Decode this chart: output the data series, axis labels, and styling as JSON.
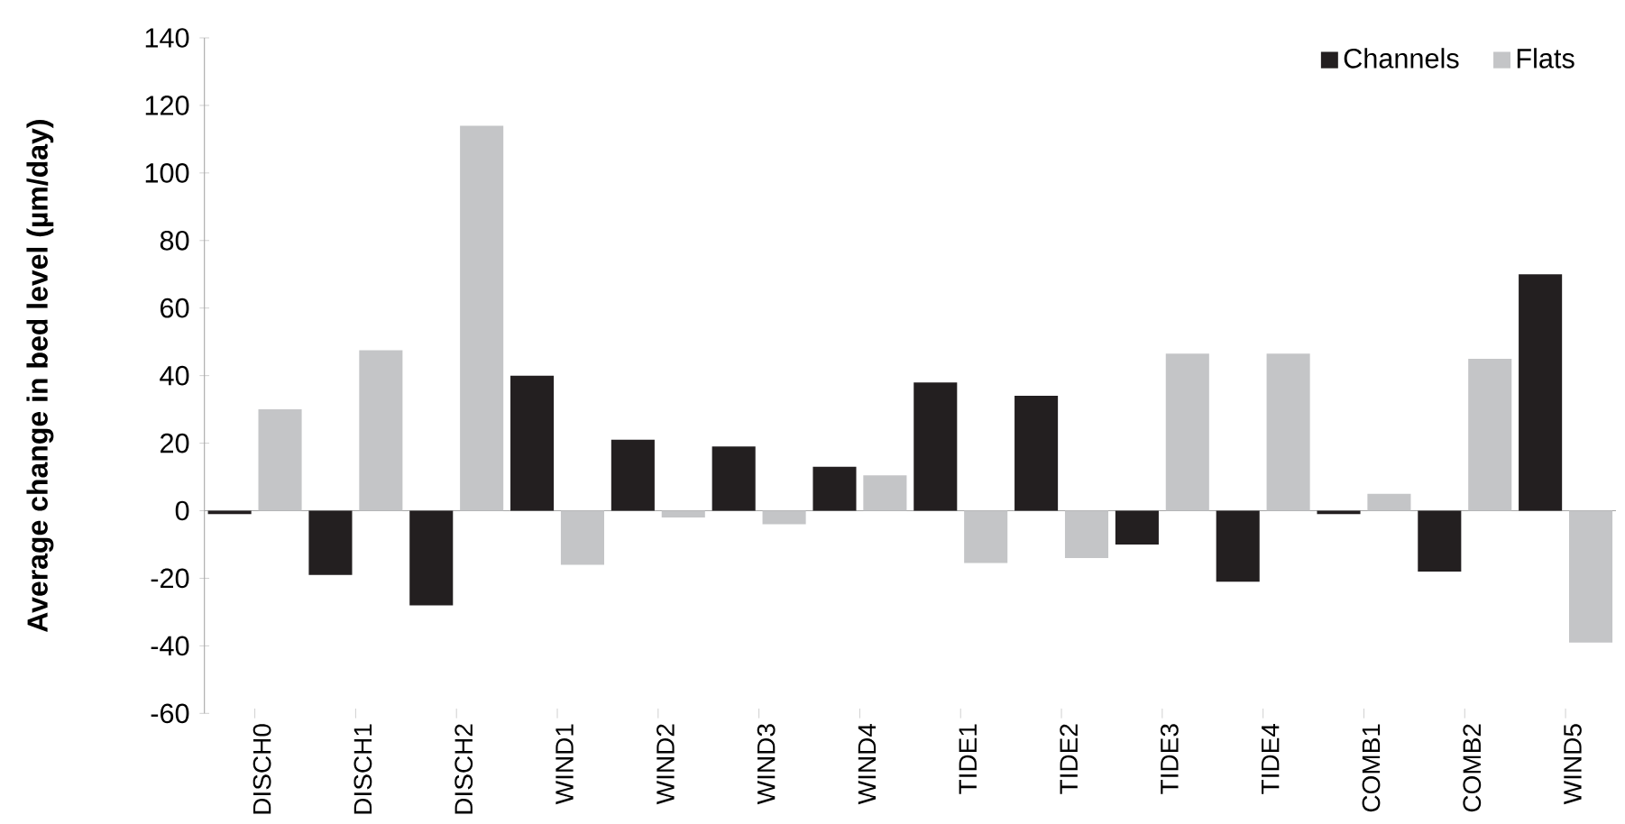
{
  "chart_data": {
    "type": "bar",
    "ylabel": "Average change in bed level (µm/day)",
    "categories": [
      "DISCH0",
      "DISCH1",
      "DISCH2",
      "WIND1",
      "WIND2",
      "WIND3",
      "WIND4",
      "TIDE1",
      "TIDE2",
      "TIDE3",
      "TIDE4",
      "COMB1",
      "COMB2",
      "WIND5"
    ],
    "series": [
      {
        "name": "Channels",
        "color": "#231f20",
        "values": [
          -1,
          -19,
          -28,
          40,
          21,
          19,
          13,
          38,
          34,
          -10,
          -21,
          -1,
          -18,
          70
        ]
      },
      {
        "name": "Flats",
        "color": "#c4c5c7",
        "values": [
          30,
          47.5,
          114,
          -16,
          -2,
          -4,
          10.5,
          -15.5,
          -14,
          46.5,
          46.5,
          5,
          45,
          -39
        ]
      }
    ],
    "ylim": [
      -60,
      140
    ],
    "yticks": [
      -60,
      -40,
      -20,
      0,
      20,
      40,
      60,
      80,
      100,
      120,
      140
    ],
    "legend": "top right"
  }
}
